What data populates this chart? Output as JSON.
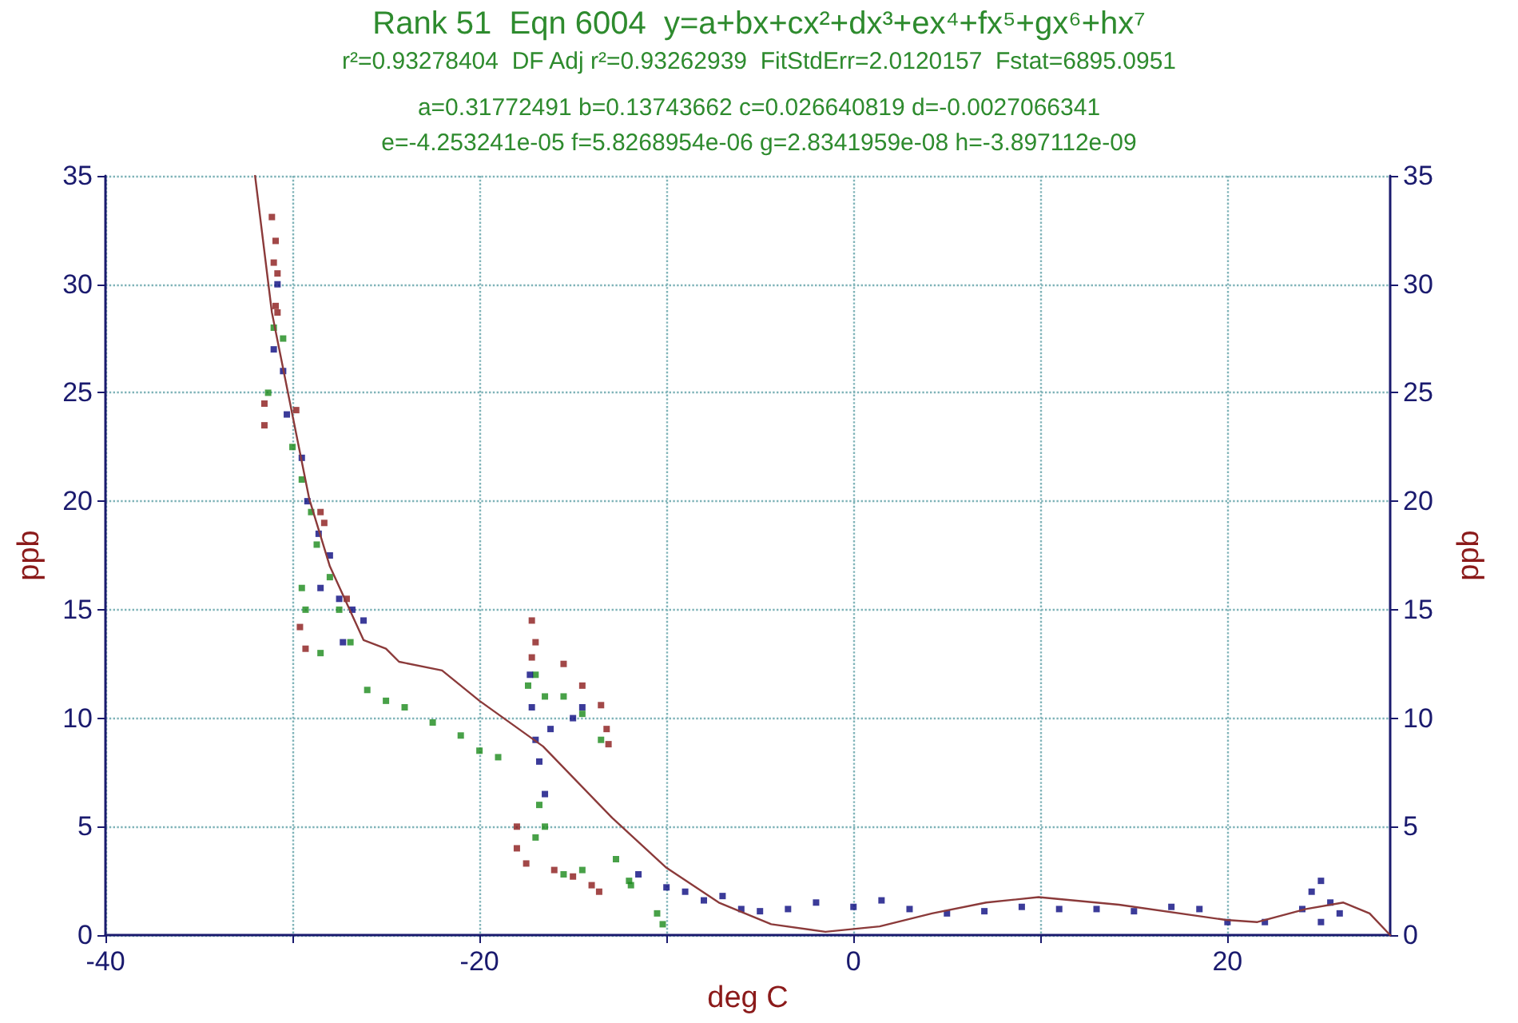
{
  "chart_data": {
    "type": "scatter",
    "title": "Rank 51  Eqn 6004  y=a+bx+cx²+dx³+ex⁴+fx⁵+gx⁶+hx⁷",
    "subtitle": "r²=0.93278404  DF Adj r²=0.93262939  FitStdErr=2.0120157  Fstat=6895.0951",
    "annotations": [
      "a=0.31772491 b=0.13743662 c=0.026640819 d=-0.0027066341",
      "e=-4.253241e-05 f=5.8268954e-06 g=2.8341959e-08 h=-3.897112e-09"
    ],
    "xlabel": "deg C",
    "ylabel": "ppb",
    "y2label": "ppb",
    "xlim": [
      -40,
      28.7
    ],
    "xticks": [
      -40,
      {
        "value": -30,
        "label": null
      },
      -20,
      {
        "value": -10,
        "label": null
      },
      0,
      {
        "value": 10,
        "label": null
      },
      20
    ],
    "ylim": [
      0,
      35
    ],
    "yticks": [
      0,
      5,
      10,
      15,
      20,
      25,
      30,
      35
    ],
    "y2lim": [
      0,
      35
    ],
    "y2ticks": [
      0,
      5,
      10,
      15,
      20,
      25,
      30,
      35
    ],
    "grid": true,
    "marker": "square",
    "series": [
      {
        "color": "#8b1a1a",
        "x": [
          -31.1,
          -30.9,
          -31.0,
          -30.8,
          -30.9,
          -30.8,
          -31.5,
          -31.5,
          -29.8,
          -28.5,
          -28.3,
          -27.1,
          -29.6,
          -29.3,
          -17.2,
          -17.0,
          -17.2,
          -15.5,
          -14.5,
          -13.5,
          -13.2,
          -13.1,
          -18,
          -18,
          -17.5,
          -16,
          -15,
          -14,
          -13.6
        ],
        "values": [
          33.1,
          32,
          31,
          30.5,
          29,
          28.7,
          24.5,
          23.5,
          24.2,
          19.5,
          19,
          15.5,
          14.2,
          13.2,
          14.5,
          13.5,
          12.8,
          12.5,
          11.5,
          10.6,
          9.5,
          8.8,
          5,
          4,
          3.3,
          3,
          2.7,
          2.3,
          2
        ]
      },
      {
        "color": "#1a8a1a",
        "x": [
          -31,
          -30.5,
          -31.3,
          -30,
          -29.5,
          -29,
          -28.7,
          -29.5,
          -29.3,
          -28,
          -27.5,
          -28.5,
          -26.9,
          -26,
          -25,
          -24,
          -22.5,
          -21,
          -20,
          -19,
          -17.4,
          -17,
          -16.5,
          -15.5,
          -14.5,
          -13.5,
          -16.8,
          -16.5,
          -17,
          -15.5,
          -14.5,
          -12.7,
          -12,
          -11.9,
          -10.5,
          -10.2
        ],
        "values": [
          28,
          27.5,
          25,
          22.5,
          21,
          19.5,
          18,
          16,
          15,
          16.5,
          15,
          13,
          13.5,
          11.3,
          10.8,
          10.5,
          9.8,
          9.2,
          8.5,
          8.2,
          11.5,
          12,
          11,
          11,
          10.2,
          9,
          6,
          5,
          4.5,
          2.8,
          3,
          3.5,
          2.5,
          2.3,
          1,
          0.5
        ]
      },
      {
        "color": "#0a0a80",
        "x": [
          -30.8,
          -31,
          -30.5,
          -30.3,
          -29.5,
          -29.2,
          -28.6,
          -28,
          -28.5,
          -27.5,
          -26.8,
          -27.3,
          -26.2,
          -17.3,
          -17.2,
          -17,
          -16.8,
          -16.5,
          -16.2,
          -15,
          -14.5,
          -11.5,
          -10,
          -9,
          -8,
          -7,
          -6,
          -5,
          -3.5,
          -2,
          0,
          1.5,
          3,
          5,
          7,
          9,
          11,
          13,
          15,
          17,
          18.5,
          20,
          22,
          24,
          24.5,
          25,
          25.5,
          26,
          25
        ],
        "values": [
          30,
          27,
          26,
          24,
          22,
          20,
          18.5,
          17.5,
          16,
          15.5,
          15,
          13.5,
          14.5,
          12,
          10.5,
          9,
          8,
          6.5,
          9.5,
          10,
          10.5,
          2.8,
          2.2,
          2,
          1.6,
          1.8,
          1.2,
          1.1,
          1.2,
          1.5,
          1.3,
          1.6,
          1.2,
          1,
          1.1,
          1.3,
          1.2,
          1.2,
          1.1,
          1.3,
          1.2,
          0.6,
          0.6,
          1.2,
          2,
          2.5,
          1.5,
          1,
          0.6
        ]
      },
      {
        "type": "line",
        "marker": "none",
        "color": "#8b3a3a",
        "x": [
          -32.0,
          -31.1,
          -29.1,
          -28,
          -26.2,
          -25,
          -24.3,
          -22,
          -20,
          -16.6,
          -12.9,
          -10,
          -7.2,
          -4.4,
          -1.5,
          1.4,
          4.2,
          7.1,
          9.9,
          14.2,
          19.9,
          21.6,
          24.2,
          26.2,
          27.6,
          28.7
        ],
        "values": [
          35,
          28.7,
          20.1,
          17,
          13.6,
          13.2,
          12.6,
          12.2,
          10.8,
          8.7,
          5.4,
          3.1,
          1.5,
          0.5,
          0.15,
          0.4,
          1.0,
          1.5,
          1.75,
          1.4,
          0.7,
          0.6,
          1.2,
          1.5,
          1.0,
          0
        ]
      }
    ]
  }
}
